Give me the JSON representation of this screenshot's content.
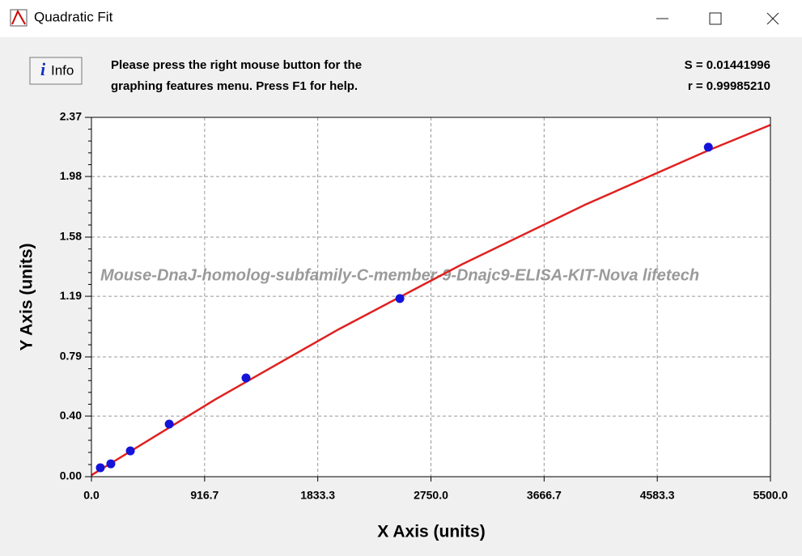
{
  "window": {
    "title": "Quadratic Fit",
    "info_button": "Info",
    "message": [
      "Please press the right mouse button for the",
      "graphing features menu.  Press F1 for help."
    ],
    "stats": [
      "S = 0.01441996",
      "r = 0.99985210"
    ]
  },
  "chart_data": {
    "type": "scatter",
    "watermark": "Mouse-DnaJ-homolog-subfamily-C-member-9-Dnajc9-ELISA-KIT-Nova lifetech",
    "x_label": "X Axis (units)",
    "y_label": "Y Axis (units)",
    "xlim": [
      0,
      5500
    ],
    "xticks": [
      {
        "value": 0,
        "label": "0.0"
      },
      916.7,
      1833.3,
      {
        "value": 2750,
        "label": "2750.0"
      },
      3666.7,
      4583.3,
      {
        "value": 5500,
        "label": "5500.0"
      }
    ],
    "ylim": [
      0,
      2.37
    ],
    "yticks": [
      {
        "value": 0,
        "label": "0.00"
      },
      {
        "value": 0.4,
        "label": "0.40"
      },
      0.79,
      1.19,
      1.58,
      1.98,
      2.37
    ],
    "grid": true,
    "series": [
      {
        "mode": "line",
        "color": "#e02020",
        "x": [
          0,
          1000,
          2000,
          3000,
          4000,
          5000,
          5500
        ],
        "values": [
          0.01,
          0.508,
          0.971,
          1.4,
          1.794,
          2.153,
          2.32
        ]
      },
      {
        "mode": "markers",
        "color": "#1414d8",
        "x": [
          72,
          157,
          315,
          630,
          1252,
          2498,
          4997
        ],
        "values": [
          0.059,
          0.085,
          0.17,
          0.347,
          0.651,
          1.175,
          2.173
        ]
      }
    ]
  }
}
